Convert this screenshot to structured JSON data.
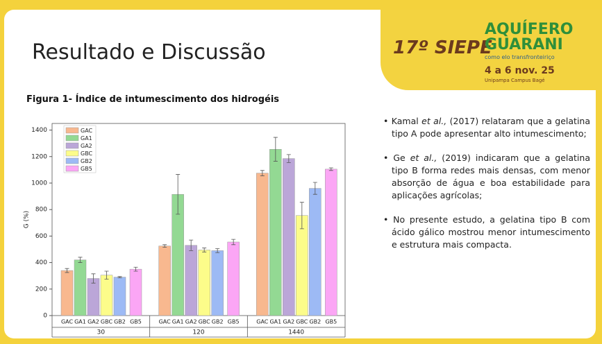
{
  "header": {
    "title": "Resultado e Discussão"
  },
  "logo": {
    "edition": "17º SIEPE",
    "theme_line1": "AQUÍFERO",
    "theme_line2": "GUARANI",
    "theme_sub": "como elo transfronteiriço",
    "dates": "4 a 6 nov. 25",
    "place": "Unipampa Campus Bagé"
  },
  "figure_caption": "Figura 1- Índice de intumescimento dos hidrogéis",
  "bullets": [
    {
      "before": "Kamal ",
      "italic": "et al.,",
      "after": " (2017) relataram que a gelatina tipo A pode apresentar alto intumescimento;"
    },
    {
      "before": "Ge ",
      "italic": "et al.,",
      "after": " (2019) indicaram que a gelatina tipo B forma redes mais densas, com menor absorção de água e boa estabilidade para aplicações agrícolas;"
    },
    {
      "before": "No presente estudo, a gelatina tipo B com ácido gálico mostrou menor intumescimento e estrutura mais compacta."
    }
  ],
  "chart_data": {
    "type": "bar",
    "y_label": "G (%)",
    "categories": [
      "30",
      "120",
      "1440"
    ],
    "series": [
      {
        "name": "GAC",
        "color": "#f8b88f",
        "values": [
          340,
          525,
          1075
        ],
        "errors": [
          15,
          10,
          20
        ]
      },
      {
        "name": "GA1",
        "color": "#93d993",
        "values": [
          420,
          915,
          1255
        ],
        "errors": [
          20,
          150,
          90
        ]
      },
      {
        "name": "GA2",
        "color": "#bba6d8",
        "values": [
          280,
          530,
          1185
        ],
        "errors": [
          35,
          40,
          30
        ]
      },
      {
        "name": "GBC",
        "color": "#fcfc8a",
        "values": [
          305,
          495,
          755
        ],
        "errors": [
          30,
          15,
          100
        ]
      },
      {
        "name": "GB2",
        "color": "#9dbaf5",
        "values": [
          290,
          490,
          960
        ],
        "errors": [
          5,
          15,
          45
        ]
      },
      {
        "name": "GB5",
        "color": "#fba6f5",
        "values": [
          350,
          555,
          1105
        ],
        "errors": [
          15,
          20,
          10
        ]
      }
    ],
    "ylim": [
      0,
      1450
    ],
    "yticks": [
      0,
      200,
      400,
      600,
      800,
      1000,
      1200,
      1400
    ],
    "legend": "upper-left"
  }
}
